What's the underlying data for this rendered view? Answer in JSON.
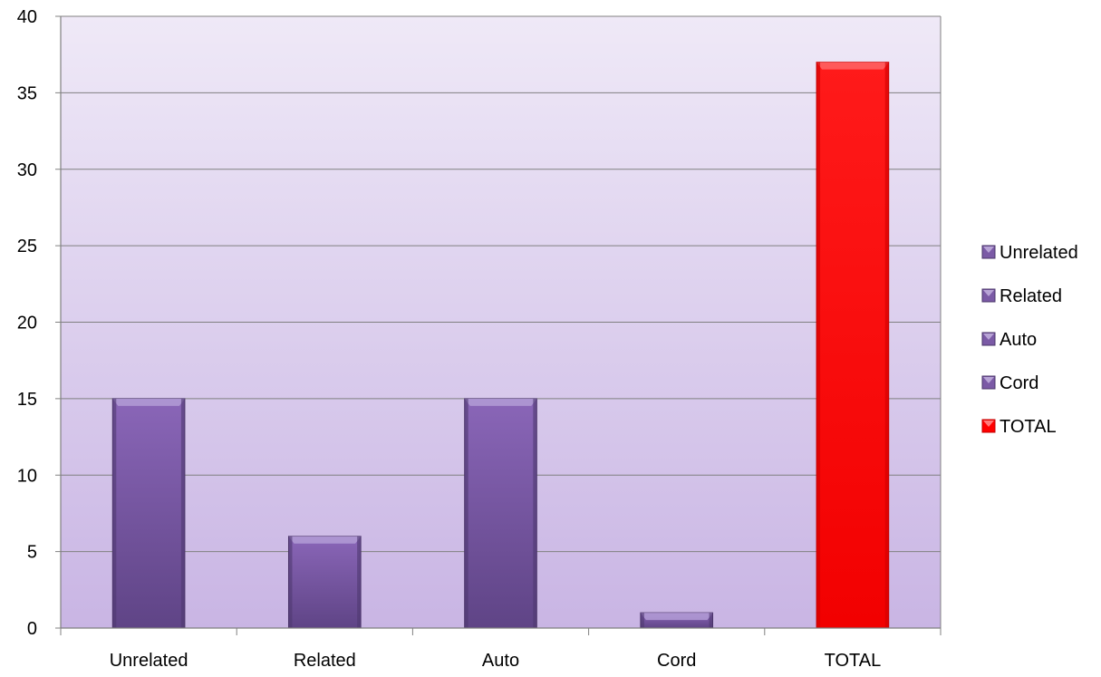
{
  "chart_data": {
    "type": "bar",
    "title": "",
    "xlabel": "",
    "ylabel": "",
    "categories": [
      "Unrelated",
      "Related",
      "Auto",
      "Cord",
      "TOTAL"
    ],
    "series": [
      {
        "name": "Unrelated",
        "category": "Unrelated",
        "value": 15,
        "color": "#7b5aa6"
      },
      {
        "name": "Related",
        "category": "Related",
        "value": 6,
        "color": "#7b5aa6"
      },
      {
        "name": "Auto",
        "category": "Auto",
        "value": 15,
        "color": "#7b5aa6"
      },
      {
        "name": "Cord",
        "category": "Cord",
        "value": 1,
        "color": "#7b5aa6"
      },
      {
        "name": "TOTAL",
        "category": "TOTAL",
        "value": 37,
        "color": "#ff0000"
      }
    ],
    "ylim": [
      0,
      40
    ],
    "yticks": [
      0,
      5,
      10,
      15,
      20,
      25,
      30,
      35,
      40
    ],
    "grid": true,
    "legend_position": "right",
    "colors": {
      "plot_background_top": "#efe9f7",
      "plot_background_bottom": "#c9b5e4",
      "gridline": "#808080",
      "purple_bar": "#7b5aa6",
      "red_bar": "#ff0000"
    }
  }
}
